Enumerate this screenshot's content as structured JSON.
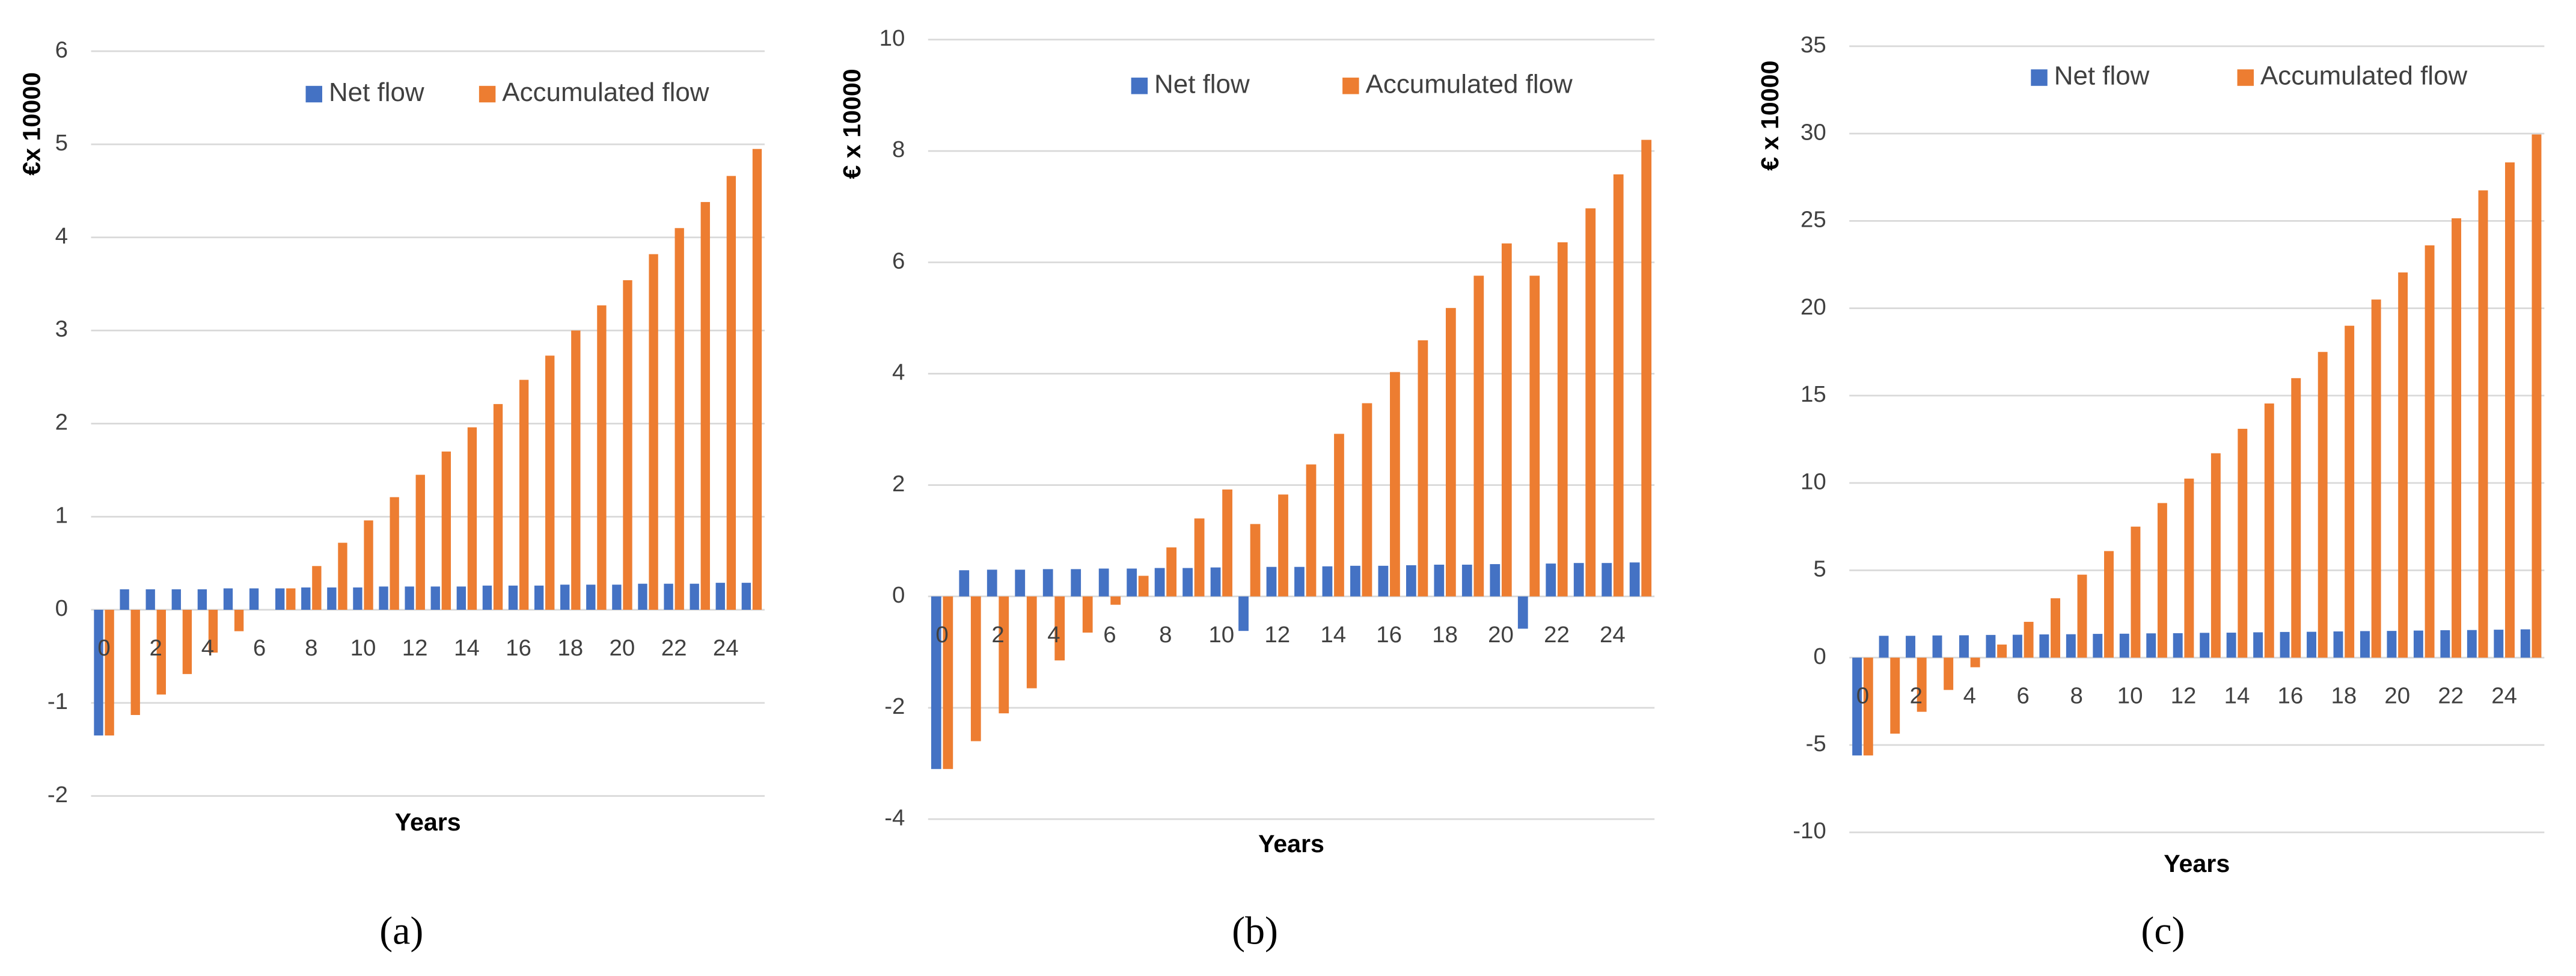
{
  "chart_data": [
    {
      "type": "bar",
      "label": "(a)",
      "y_label": "€x 10000",
      "x_label": "Years",
      "categories": [
        "0",
        null,
        "2",
        null,
        "4",
        null,
        "6",
        null,
        "8",
        null,
        "10",
        null,
        "12",
        null,
        "14",
        null,
        "16",
        null,
        "18",
        null,
        "20",
        null,
        "22",
        null,
        "24",
        null
      ],
      "series": [
        {
          "name": "Net flow",
          "color": "#4472c4",
          "values": [
            -1.35,
            0.22,
            0.22,
            0.22,
            0.22,
            0.23,
            0.23,
            0.23,
            0.24,
            0.24,
            0.24,
            0.25,
            0.25,
            0.25,
            0.25,
            0.26,
            0.26,
            0.26,
            0.27,
            0.27,
            0.27,
            0.28,
            0.28,
            0.28,
            0.29,
            0.29
          ]
        },
        {
          "name": "Accumulated flow",
          "color": "#ed7d31",
          "values": [
            -1.35,
            -1.13,
            -0.91,
            -0.69,
            -0.46,
            -0.23,
            0.0,
            0.23,
            0.47,
            0.72,
            0.96,
            1.21,
            1.45,
            1.7,
            1.96,
            2.21,
            2.47,
            2.73,
            3.0,
            3.27,
            3.54,
            3.82,
            4.1,
            4.38,
            4.66,
            4.95
          ]
        }
      ],
      "ylim": [
        -2,
        6
      ],
      "yticks": [
        -2,
        -1,
        0,
        1,
        2,
        3,
        4,
        5,
        6
      ],
      "grid": true
    },
    {
      "type": "bar",
      "label": "(b)",
      "y_label": "€ x 10000",
      "x_label": "Years",
      "categories": [
        "0",
        null,
        "2",
        null,
        "4",
        null,
        "6",
        null,
        "8",
        null,
        "10",
        null,
        "12",
        null,
        "14",
        null,
        "16",
        null,
        "18",
        null,
        "20",
        null,
        "22",
        null,
        "24",
        null
      ],
      "series": [
        {
          "name": "Net flow",
          "color": "#4472c4",
          "values": [
            -3.1,
            0.47,
            0.48,
            0.48,
            0.49,
            0.49,
            0.5,
            0.5,
            0.51,
            0.51,
            0.52,
            -0.62,
            0.53,
            0.53,
            0.54,
            0.55,
            0.55,
            0.56,
            0.57,
            0.57,
            0.58,
            -0.58,
            0.59,
            0.6,
            0.6,
            0.61
          ]
        },
        {
          "name": "Accumulated flow",
          "color": "#ed7d31",
          "values": [
            -3.1,
            -2.6,
            -2.1,
            -1.65,
            -1.15,
            -0.65,
            -0.15,
            0.37,
            0.88,
            1.4,
            1.92,
            1.3,
            1.83,
            2.37,
            2.92,
            3.47,
            4.03,
            4.6,
            5.18,
            5.76,
            6.34,
            5.76,
            6.36,
            6.97,
            7.58,
            8.2
          ]
        }
      ],
      "ylim": [
        -4,
        10
      ],
      "yticks": [
        -4,
        -2,
        0,
        2,
        4,
        6,
        8,
        10
      ],
      "grid": true
    },
    {
      "type": "bar",
      "label": "(c)",
      "y_label": "€ x 10000",
      "x_label": "Years",
      "categories": [
        "0",
        null,
        "2",
        null,
        "4",
        null,
        "6",
        null,
        "8",
        null,
        "10",
        null,
        "12",
        null,
        "14",
        null,
        "16",
        null,
        "18",
        null,
        "20",
        null,
        "22",
        null,
        "24",
        null
      ],
      "series": [
        {
          "name": "Net flow",
          "color": "#4472c4",
          "values": [
            -5.6,
            1.25,
            1.25,
            1.27,
            1.28,
            1.3,
            1.31,
            1.33,
            1.34,
            1.36,
            1.37,
            1.39,
            1.4,
            1.42,
            1.43,
            1.45,
            1.47,
            1.48,
            1.5,
            1.52,
            1.53,
            1.55,
            1.57,
            1.58,
            1.6,
            1.62
          ]
        },
        {
          "name": "Accumulated flow",
          "color": "#ed7d31",
          "values": [
            -5.6,
            -4.35,
            -3.1,
            -1.85,
            -0.55,
            0.75,
            2.05,
            3.4,
            4.75,
            6.1,
            7.5,
            8.85,
            10.25,
            11.7,
            13.1,
            14.55,
            16.0,
            17.5,
            19.0,
            20.5,
            22.05,
            23.6,
            25.15,
            26.75,
            28.35,
            29.95
          ]
        }
      ],
      "ylim": [
        -10,
        35
      ],
      "yticks": [
        -10,
        -5,
        0,
        5,
        10,
        15,
        20,
        25,
        30,
        35
      ],
      "grid": true
    }
  ]
}
